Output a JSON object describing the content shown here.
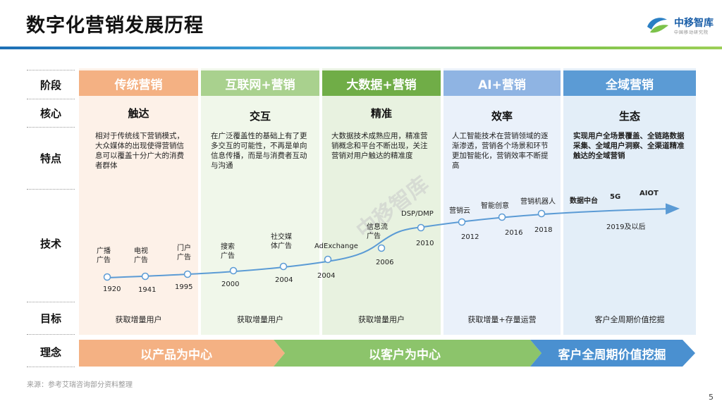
{
  "title": "数字化营销发展历程",
  "logo": {
    "name": "中移智库",
    "subtitle": "中国移动研究院"
  },
  "row_labels": [
    "阶段",
    "核心",
    "特点",
    "技术",
    "目标",
    "理念"
  ],
  "stages": [
    {
      "name": "传统营销",
      "core": "触达",
      "feature": "相对于传统线下营销模式，大众媒体的出现使得营销信息可以覆盖十分广大的消费者群体",
      "goal": "获取增量用户",
      "color": "#f4b183",
      "bg": "#fdf1e8"
    },
    {
      "name": "互联网+营销",
      "core": "交互",
      "feature": "在广泛覆盖性的基础上有了更多交互的可能性，不再是单向信息传播，而是与消费者互动与沟通",
      "goal": "获取增量用户",
      "color": "#a9d18e",
      "bg": "#f0f7ea"
    },
    {
      "name": "大数据+营销",
      "core": "精准",
      "feature": "大数据技术成熟应用，精准营销概念和平台不断出现，关注营销对用户触达的精准度",
      "goal": "获取增量用户",
      "color": "#70ad47",
      "bg": "#e8f2e0"
    },
    {
      "name": "AI+营销",
      "core": "效率",
      "feature": "人工智能技术在营销领域的逐渐渗透，营销各个场景和环节更加智能化，营销效率不断提高",
      "goal": "获取增量+存量运营",
      "color": "#8fb4e3",
      "bg": "#eaf1fa"
    },
    {
      "name": "全域营销",
      "core": "生态",
      "feature": "实现用户全场景覆盖、全链路数据采集、全域用户洞察、全渠道精准触达的全域营销",
      "goal": "客户全周期价值挖掘",
      "color": "#5b9bd5",
      "bg": "#e3eef8"
    }
  ],
  "tech_points": [
    {
      "label": "广播\n广告",
      "year": "1920"
    },
    {
      "label": "电视\n广告",
      "year": "1941"
    },
    {
      "label": "门户\n广告",
      "year": "1995"
    },
    {
      "label": "搜索\n广告",
      "year": "2000"
    },
    {
      "label": "社交媒\n体广告",
      "year": "2004"
    },
    {
      "label": "AdExchange",
      "year": "2004"
    },
    {
      "label": "信息流\n广告",
      "year": "2006"
    },
    {
      "label": "DSP/DMP",
      "year": "2010"
    },
    {
      "label": "营销云",
      "year": "2012"
    },
    {
      "label": "智能创意",
      "year": "2016"
    },
    {
      "label": "营销机器人",
      "year": "2018"
    },
    {
      "label": "数据中台",
      "year": ""
    },
    {
      "label": "5G",
      "year": ""
    },
    {
      "label": "AIOT",
      "year": "2019及以后"
    }
  ],
  "concepts": [
    {
      "label": "以产品为中心",
      "color": "#f4b183"
    },
    {
      "label": "以客户为中心",
      "color": "#8cc46b"
    },
    {
      "label": "客户全周期价值挖掘",
      "color": "#4a90d0"
    }
  ],
  "watermark": "中移智库",
  "source": "来源：参考艾瑞咨询部分资料整理",
  "page_number": "5"
}
